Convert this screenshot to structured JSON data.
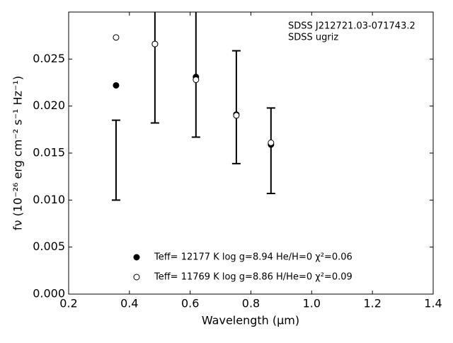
{
  "chart_data": {
    "type": "scatter",
    "xlabel": "Wavelength (μm)",
    "ylabel": "fν (10⁻²⁶ erg cm⁻² s⁻¹ Hz⁻¹)",
    "annotations": [
      "SDSS J212721.03-071743.2",
      "SDSS ugriz"
    ],
    "x": [
      0.356,
      0.484,
      0.619,
      0.752,
      0.866
    ],
    "observed": {
      "values": [
        0.01425,
        0.0265,
        0.025,
        0.01988,
        0.01525
      ],
      "errors": [
        0.00425,
        0.0083,
        0.0083,
        0.006,
        0.00455
      ],
      "color": "#000000"
    },
    "series": [
      {
        "name": "Teff= 12177 K  log g=8.94  He/H=0  χ²=0.06",
        "color": "#000000",
        "filled": true,
        "values": [
          0.0222,
          0.0266,
          0.0231,
          0.0191,
          0.0159
        ]
      },
      {
        "name": "Teff= 11769 K  log g=8.86  H/He=0  χ²=0.09",
        "color": "#000000",
        "filled": false,
        "values": [
          0.0273,
          0.0266,
          0.0228,
          0.019,
          0.0161
        ]
      }
    ],
    "xlim": [
      0.2,
      1.4
    ],
    "xticks": [
      0.2,
      0.4,
      0.6,
      0.8,
      {
        "value": 1,
        "label": "1.0"
      },
      1.2,
      1.4
    ],
    "ylim": [
      0,
      0.03
    ],
    "yticks": [
      {
        "value": 0,
        "label": "0.000"
      },
      0.005,
      {
        "value": 0.01,
        "label": "0.010"
      },
      0.015,
      {
        "value": 0.02,
        "label": "0.020"
      },
      0.025
    ],
    "grid": false
  }
}
